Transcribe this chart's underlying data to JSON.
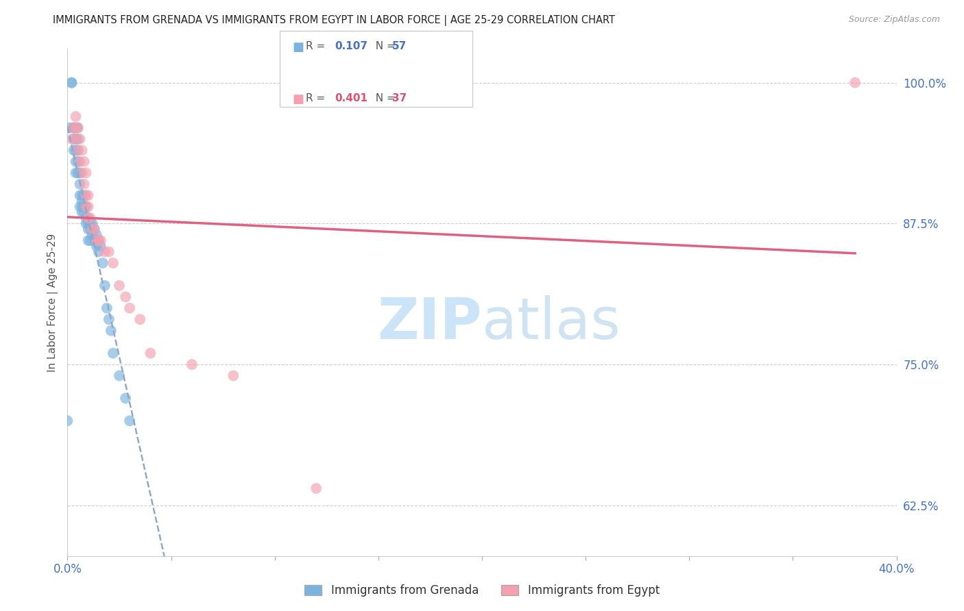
{
  "title": "IMMIGRANTS FROM GRENADA VS IMMIGRANTS FROM EGYPT IN LABOR FORCE | AGE 25-29 CORRELATION CHART",
  "source": "Source: ZipAtlas.com",
  "ylabel": "In Labor Force | Age 25-29",
  "xlim": [
    0.0,
    0.4
  ],
  "ylim": [
    0.58,
    1.03
  ],
  "yticks_right": [
    0.625,
    0.75,
    0.875,
    1.0
  ],
  "yticklabels_right": [
    "62.5%",
    "75.0%",
    "87.5%",
    "100.0%"
  ],
  "grenada_color": "#7ab3e0",
  "egypt_color": "#f4a0b0",
  "grenada_line_color": "#5a8fd0",
  "egypt_line_color": "#e06080",
  "grenada_R": 0.107,
  "grenada_N": 57,
  "egypt_R": 0.401,
  "egypt_N": 37,
  "legend_R_color_grenada": "#4472c4",
  "legend_R_color_egypt": "#e05070",
  "legend_N_color": "#4472c4",
  "watermark": "ZIPatlas",
  "watermark_color": "#cce4f7",
  "axis_label_color": "#4472c4",
  "grid_color": "#cccccc",
  "background_color": "#ffffff",
  "grenada_x": [
    0.0,
    0.001,
    0.002,
    0.002,
    0.003,
    0.003,
    0.003,
    0.003,
    0.004,
    0.004,
    0.004,
    0.004,
    0.004,
    0.005,
    0.005,
    0.005,
    0.005,
    0.005,
    0.006,
    0.006,
    0.006,
    0.006,
    0.007,
    0.007,
    0.007,
    0.007,
    0.008,
    0.008,
    0.008,
    0.009,
    0.009,
    0.009,
    0.01,
    0.01,
    0.01,
    0.01,
    0.011,
    0.011,
    0.011,
    0.012,
    0.012,
    0.013,
    0.013,
    0.014,
    0.014,
    0.015,
    0.015,
    0.016,
    0.017,
    0.018,
    0.019,
    0.02,
    0.021,
    0.022,
    0.025,
    0.028,
    0.03
  ],
  "grenada_y": [
    0.7,
    0.96,
    1.0,
    1.0,
    0.96,
    0.96,
    0.95,
    0.94,
    0.96,
    0.95,
    0.94,
    0.93,
    0.92,
    0.96,
    0.95,
    0.94,
    0.93,
    0.92,
    0.92,
    0.91,
    0.9,
    0.89,
    0.9,
    0.895,
    0.89,
    0.885,
    0.9,
    0.89,
    0.885,
    0.89,
    0.88,
    0.875,
    0.88,
    0.875,
    0.87,
    0.86,
    0.875,
    0.87,
    0.86,
    0.875,
    0.865,
    0.87,
    0.86,
    0.865,
    0.855,
    0.86,
    0.85,
    0.855,
    0.84,
    0.82,
    0.8,
    0.79,
    0.78,
    0.76,
    0.74,
    0.72,
    0.7
  ],
  "egypt_x": [
    0.002,
    0.003,
    0.004,
    0.004,
    0.004,
    0.005,
    0.005,
    0.006,
    0.006,
    0.007,
    0.007,
    0.008,
    0.008,
    0.009,
    0.009,
    0.009,
    0.01,
    0.01,
    0.01,
    0.011,
    0.012,
    0.013,
    0.014,
    0.015,
    0.016,
    0.018,
    0.02,
    0.022,
    0.025,
    0.028,
    0.03,
    0.035,
    0.04,
    0.06,
    0.08,
    0.12,
    0.38
  ],
  "egypt_y": [
    0.95,
    0.96,
    0.97,
    0.96,
    0.95,
    0.96,
    0.94,
    0.95,
    0.93,
    0.94,
    0.92,
    0.93,
    0.91,
    0.92,
    0.9,
    0.89,
    0.9,
    0.89,
    0.88,
    0.88,
    0.87,
    0.87,
    0.86,
    0.86,
    0.86,
    0.85,
    0.85,
    0.84,
    0.82,
    0.81,
    0.8,
    0.79,
    0.76,
    0.75,
    0.74,
    0.64,
    1.0
  ]
}
